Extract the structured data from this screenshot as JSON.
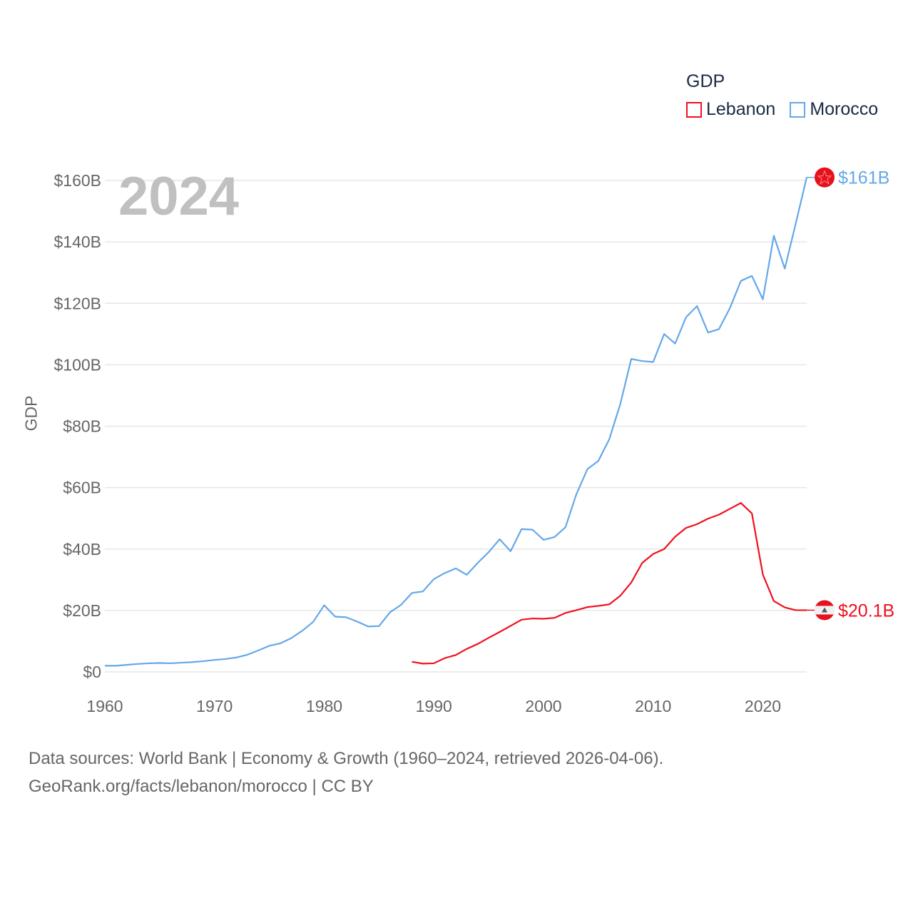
{
  "chart_data": {
    "type": "line",
    "title": "",
    "xlabel": "",
    "ylabel": "GDP",
    "year_label": "2024",
    "xlim": [
      1960,
      2024
    ],
    "ylim": [
      0,
      160
    ],
    "x_ticks": [
      1960,
      1970,
      1980,
      1990,
      2000,
      2010,
      2020
    ],
    "x_tick_labels": [
      "1960",
      "1970",
      "1980",
      "1990",
      "2000",
      "2010",
      "2020"
    ],
    "y_ticks": [
      0,
      20,
      40,
      60,
      80,
      100,
      120,
      140,
      160
    ],
    "y_tick_labels": [
      "$0",
      "$20B",
      "$40B",
      "$60B",
      "$80B",
      "$100B",
      "$120B",
      "$140B",
      "$160B"
    ],
    "grid": true,
    "legend": {
      "title": "GDP",
      "placement": "top-right",
      "entries": [
        "Lebanon",
        "Morocco"
      ]
    },
    "series": [
      {
        "name": "Lebanon",
        "color": "#f0101e",
        "end_label": "$20.1B",
        "x_start": 1988,
        "values": [
          3.3,
          2.7,
          2.8,
          4.5,
          5.5,
          7.5,
          9.1,
          11.1,
          13.0,
          15.0,
          17.0,
          17.4,
          17.3,
          17.6,
          19.2,
          20.1,
          21.1,
          21.5,
          22.0,
          24.8,
          29.1,
          35.5,
          38.4,
          40.0,
          44.0,
          46.9,
          48.1,
          49.9,
          51.2,
          53.1,
          55.0,
          51.6,
          31.7,
          23.1,
          21.0,
          20.1,
          20.1
        ]
      },
      {
        "name": "Morocco",
        "color": "#64a8e8",
        "end_label": "$161B",
        "x_start": 1960,
        "values": [
          2.0,
          2.0,
          2.3,
          2.6,
          2.8,
          2.9,
          2.8,
          3.0,
          3.2,
          3.5,
          3.9,
          4.2,
          4.7,
          5.6,
          7.0,
          8.5,
          9.3,
          11.0,
          13.4,
          16.3,
          21.7,
          18.0,
          17.8,
          16.4,
          14.8,
          14.9,
          19.4,
          21.8,
          25.7,
          26.2,
          30.2,
          32.2,
          33.7,
          31.6,
          35.5,
          39.0,
          43.2,
          39.3,
          46.5,
          46.3,
          43.0,
          43.9,
          47.1,
          57.9,
          66.0,
          68.7,
          75.8,
          87.2,
          101.9,
          101.2,
          100.9,
          110.0,
          106.9,
          115.5,
          119.1,
          110.5,
          111.6,
          118.5,
          127.3,
          128.9,
          121.3,
          142.0,
          131.3,
          146.0,
          161.0
        ]
      }
    ]
  },
  "footer": {
    "line1": "Data sources: World Bank | Economy & Growth (1960–2024, retrieved 2026-04-06).",
    "line2": "GeoRank.org/facts/lebanon/morocco | CC BY"
  }
}
